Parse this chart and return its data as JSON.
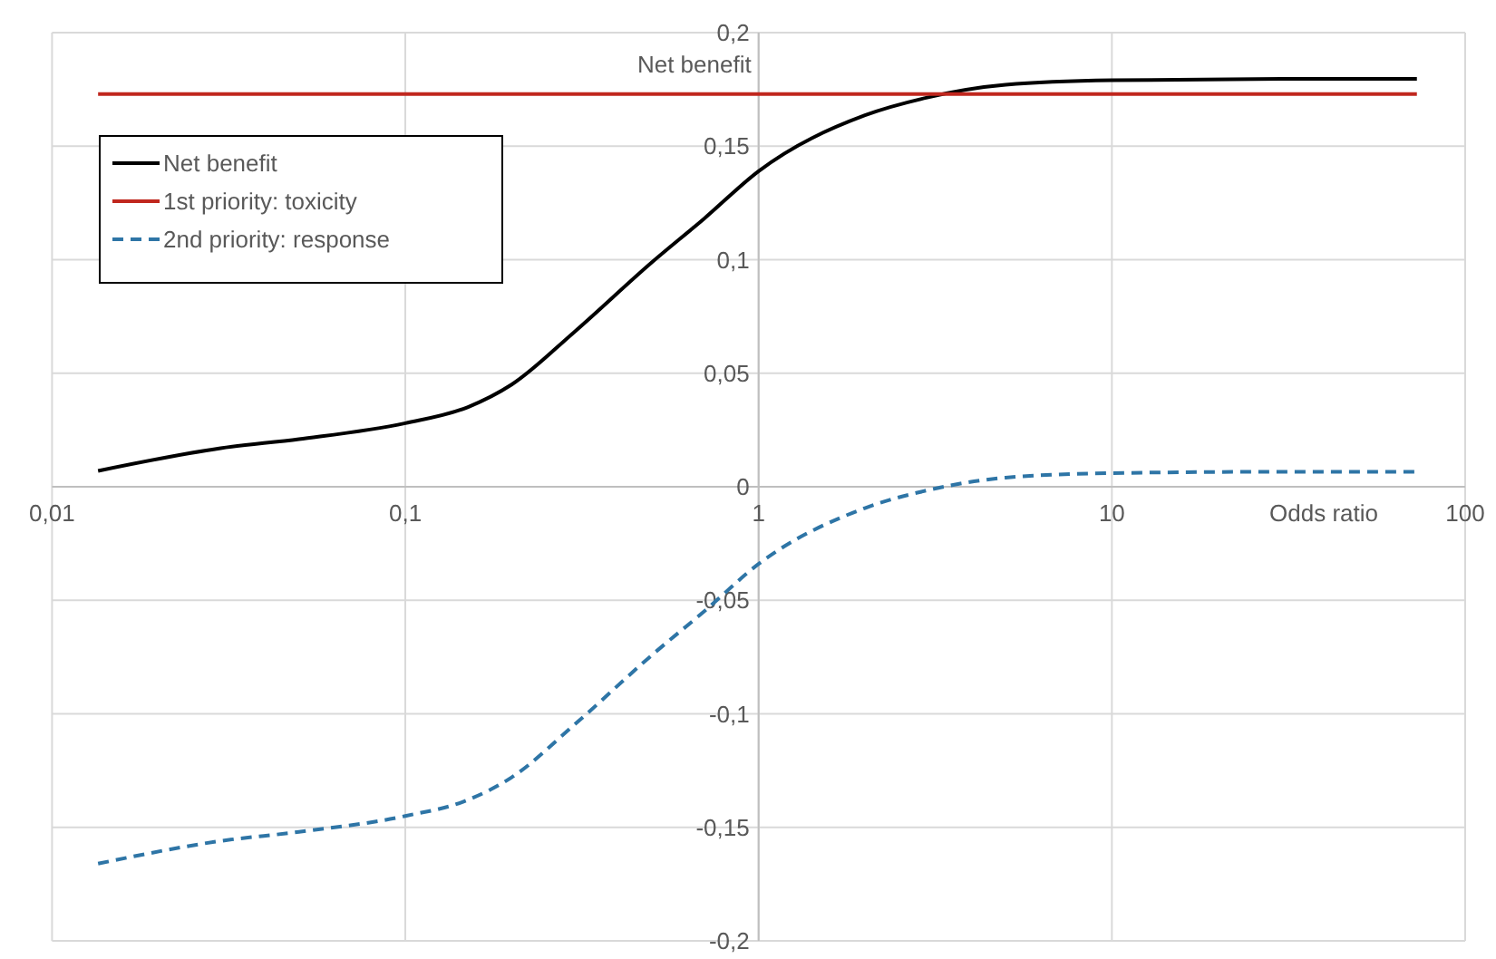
{
  "chart_data": {
    "type": "line",
    "xlabel": "Odds ratio",
    "ylabel": "Net benefit",
    "log": "x",
    "grid": true,
    "legend": "top left",
    "xlim": [
      0.01,
      100
    ],
    "xticks": [
      {
        "value": 0.01,
        "label": "0,01"
      },
      {
        "value": 0.1,
        "label": "0,1"
      },
      1,
      10,
      100
    ],
    "ylim": [
      -0.2,
      0.2
    ],
    "yticks": [
      {
        "value": -0.2,
        "label": "-0,2"
      },
      {
        "value": -0.15,
        "label": "-0,15"
      },
      {
        "value": -0.1,
        "label": "-0,1"
      },
      {
        "value": -0.05,
        "label": "-0,05"
      },
      0,
      {
        "value": 0.05,
        "label": "0,05"
      },
      {
        "value": 0.1,
        "label": "0,1"
      },
      {
        "value": 0.15,
        "label": "0,15"
      },
      {
        "value": 0.2,
        "label": "0,2"
      }
    ],
    "x": [
      0.0135,
      0.03,
      0.05,
      0.1,
      0.15,
      0.2,
      0.3,
      0.5,
      0.7,
      1,
      2,
      3,
      5,
      10,
      30,
      73
    ],
    "series": [
      {
        "name": "Net benefit",
        "color": "#000000",
        "line_style": "solid",
        "values": [
          0.007,
          0.017,
          0.021,
          0.028,
          0.035,
          0.045,
          0.068,
          0.099,
          0.118,
          0.139,
          0.1636,
          0.1714,
          0.177,
          0.179,
          0.1796,
          0.1796
        ]
      },
      {
        "name": "1st priority: toxicity",
        "color": "#c0271e",
        "line_style": "solid",
        "x": [
          0.0135,
          73
        ],
        "values": [
          0.173,
          0.173
        ]
      },
      {
        "name": "2nd priority: response",
        "color": "#2e75a6",
        "line_style": "dashed",
        "values": [
          -0.166,
          -0.156,
          -0.152,
          -0.145,
          -0.138,
          -0.128,
          -0.105,
          -0.074,
          -0.055,
          -0.034,
          -0.0094,
          -0.0016,
          0.004,
          0.006,
          0.0066,
          0.0066
        ]
      }
    ]
  }
}
